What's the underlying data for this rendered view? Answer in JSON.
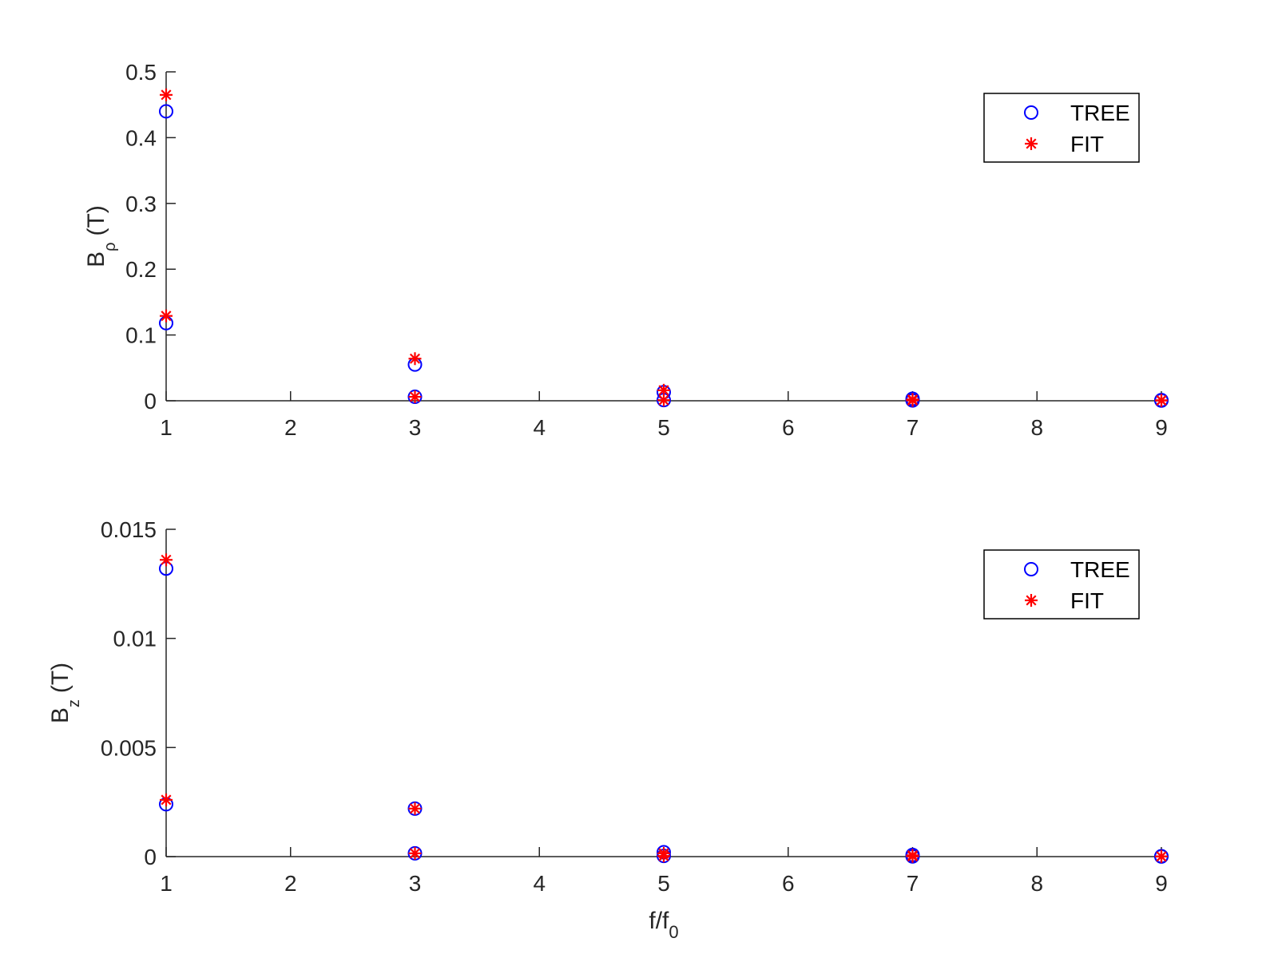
{
  "colors": {
    "tree": "#0000ff",
    "fit": "#ff0000",
    "axis": "#262626",
    "legend_border": "#000000",
    "background": "#ffffff"
  },
  "chart_data": [
    {
      "type": "scatter",
      "ylabel_main": "B",
      "ylabel_sub": "ρ",
      "ylabel_unit": "(T)",
      "xlim": [
        1,
        9
      ],
      "ylim": [
        0,
        0.5
      ],
      "xticks": [
        1,
        2,
        3,
        4,
        5,
        6,
        7,
        8,
        9
      ],
      "yticks": [
        0,
        0.1,
        0.2,
        0.3,
        0.4,
        0.5
      ],
      "ytick_labels": [
        "0",
        "0.1",
        "0.2",
        "0.3",
        "0.4",
        "0.5"
      ],
      "grid": false,
      "legend_placement": "top-right",
      "series": [
        {
          "name": "TREE",
          "marker": "circle",
          "x": [
            1,
            1,
            3,
            3,
            5,
            5,
            7,
            7,
            9,
            9
          ],
          "y": [
            0.44,
            0.118,
            0.055,
            0.006,
            0.013,
            0.001,
            0.003,
            0.0005,
            0.001,
            0.0003
          ]
        },
        {
          "name": "FIT",
          "marker": "asterisk",
          "x": [
            1,
            1,
            3,
            3,
            5,
            5,
            7,
            7,
            9,
            9
          ],
          "y": [
            0.465,
            0.129,
            0.064,
            0.006,
            0.016,
            0.001,
            0.002,
            0.0005,
            0.0008,
            0.0003
          ]
        }
      ]
    },
    {
      "type": "scatter",
      "ylabel_main": "B",
      "ylabel_sub": "z",
      "ylabel_unit": "(T)",
      "xlabel_main": "f/f",
      "xlabel_sub": "0",
      "xlim": [
        1,
        9
      ],
      "ylim": [
        0,
        0.015
      ],
      "xticks": [
        1,
        2,
        3,
        4,
        5,
        6,
        7,
        8,
        9
      ],
      "yticks": [
        0,
        0.005,
        0.01,
        0.015
      ],
      "ytick_labels": [
        "0",
        "0.005",
        "0.01",
        "0.015"
      ],
      "grid": false,
      "legend_placement": "top-right",
      "series": [
        {
          "name": "TREE",
          "marker": "circle",
          "x": [
            1,
            1,
            3,
            3,
            5,
            5,
            7,
            7,
            9,
            9
          ],
          "y": [
            0.0132,
            0.0024,
            0.0022,
            0.00015,
            0.0002,
            3e-05,
            8e-05,
            1e-05,
            2e-05,
            5e-06
          ]
        },
        {
          "name": "FIT",
          "marker": "asterisk",
          "x": [
            1,
            1,
            3,
            3,
            5,
            5,
            7,
            7,
            9,
            9
          ],
          "y": [
            0.0136,
            0.0026,
            0.0022,
            0.00015,
            0.00015,
            3e-05,
            6e-05,
            1e-05,
            1e-05,
            5e-06
          ]
        }
      ]
    }
  ]
}
